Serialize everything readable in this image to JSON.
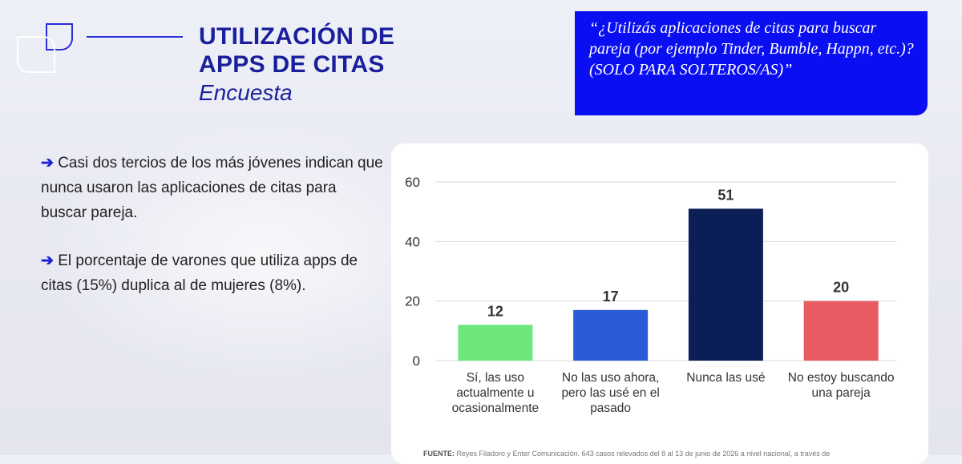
{
  "header": {
    "title_line1": "UTILIZACIÓN DE",
    "title_line2": "APPS DE CITAS",
    "subtitle": "Encuesta"
  },
  "question": {
    "text": "“¿Utilizás aplicaciones de citas para buscar pareja (por ejemplo Tinder, Bumble, Happn, etc.)? (SOLO PARA SOLTEROS/AS)”"
  },
  "bullets": [
    {
      "arrow": "➔",
      "text": "Casi dos tercios de los más jóvenes indican que nunca usaron las aplicaciones de citas para buscar pareja."
    },
    {
      "arrow": "➔",
      "text": "El porcentaje de varones que utiliza apps de citas (15%) duplica al de mujeres (8%)."
    }
  ],
  "source": {
    "label": "FUENTE:",
    "text": "Reyes Filadoro y Enter Comunicación. 643 casos relevados del 8 al 13 de junio de 2026 a nivel nacional, a través de"
  },
  "chart_data": {
    "type": "bar",
    "categories": [
      [
        "Sí, las uso",
        "actualmente u",
        "ocasionalmente"
      ],
      [
        "No las uso ahora,",
        "pero las usé en el",
        "pasado"
      ],
      [
        "Nunca las usé"
      ],
      [
        "No estoy buscando",
        "una pareja"
      ]
    ],
    "values": [
      12,
      17,
      51,
      20
    ],
    "colors": [
      "#6de67c",
      "#2b5bd6",
      "#0b1e55",
      "#e85b62"
    ],
    "yticks": [
      0,
      20,
      40,
      60
    ],
    "ylim": [
      0,
      60
    ],
    "grid": true,
    "data_labels": true
  }
}
